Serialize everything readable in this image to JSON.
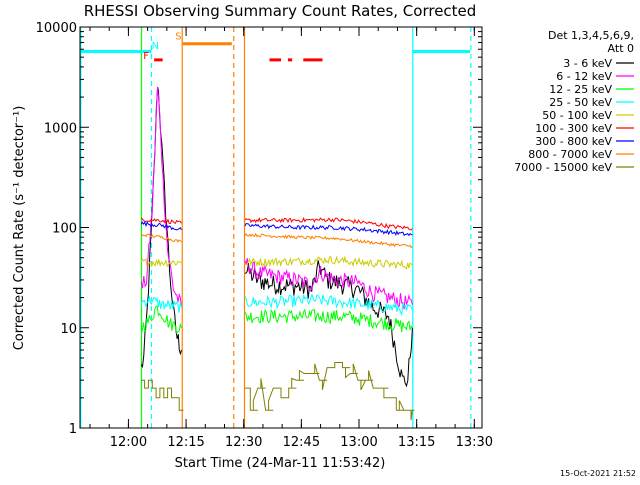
{
  "chart_data": {
    "type": "line",
    "title": "RHESSI Observing Summary Count Rates, Corrected",
    "xlabel": "Start Time (24-Mar-11 11:53:42)",
    "ylabel": "Corrected Count Rate (s⁻¹ detector⁻¹)",
    "yscale": "log",
    "ylim": [
      1,
      10000
    ],
    "xlim_minutes_from_start": [
      -6.3,
      98.3
    ],
    "x_ticks": [
      {
        "label": "12:00",
        "minutes": 6.3
      },
      {
        "label": "12:15",
        "minutes": 21.3
      },
      {
        "label": "12:30",
        "minutes": 36.3
      },
      {
        "label": "12:45",
        "minutes": 51.3
      },
      {
        "label": "13:00",
        "minutes": 66.3
      },
      {
        "label": "13:15",
        "minutes": 81.3
      },
      {
        "label": "13:30",
        "minutes": 96.3
      }
    ],
    "y_ticks": [
      {
        "label": "1",
        "value": 1
      },
      {
        "label": "10",
        "value": 10
      },
      {
        "label": "100",
        "value": 100
      },
      {
        "label": "1000",
        "value": 1000
      },
      {
        "label": "10000",
        "value": 10000
      }
    ],
    "legend": {
      "header": [
        "Det 1,3,4,5,6,9,",
        "Att 0"
      ],
      "placement": "right-outside"
    },
    "series": [
      {
        "name": "3 - 6 keV",
        "color": "#000000",
        "noise": 0.1,
        "segments": [
          {
            "points": [
              [
                9.6,
                4
              ],
              [
                10.3,
                5
              ],
              [
                11.2,
                15
              ],
              [
                12.2,
                80
              ],
              [
                13.2,
                600
              ],
              [
                13.9,
                2900
              ],
              [
                14.3,
                1800
              ],
              [
                15.0,
                600
              ],
              [
                16.0,
                150
              ],
              [
                17.0,
                40
              ],
              [
                18.0,
                14
              ],
              [
                19.0,
                8
              ],
              [
                20.1,
                6
              ]
            ]
          },
          {
            "points": [
              [
                36.6,
                38
              ],
              [
                40.0,
                30
              ],
              [
                44.0,
                27
              ],
              [
                50.0,
                26
              ],
              [
                54.0,
                24
              ],
              [
                56.0,
                41
              ],
              [
                58.0,
                30
              ],
              [
                62.0,
                27
              ],
              [
                66.0,
                24
              ],
              [
                70.0,
                16
              ],
              [
                74.0,
                13
              ],
              [
                77.6,
                3
              ],
              [
                79.0,
                3
              ],
              [
                80.2,
                10
              ]
            ]
          }
        ]
      },
      {
        "name": "6 - 12 keV",
        "color": "#ff00ff",
        "noise": 0.08,
        "segments": [
          {
            "points": [
              [
                9.6,
                25
              ],
              [
                11.0,
                30
              ],
              [
                12.5,
                150
              ],
              [
                13.5,
                1200
              ],
              [
                13.9,
                2500
              ],
              [
                14.5,
                1200
              ],
              [
                15.3,
                300
              ],
              [
                16.5,
                60
              ],
              [
                18.0,
                25
              ],
              [
                20.1,
                16
              ]
            ]
          },
          {
            "points": [
              [
                36.6,
                45
              ],
              [
                40.0,
                35
              ],
              [
                44.0,
                33
              ],
              [
                50.0,
                30
              ],
              [
                54.0,
                27
              ],
              [
                56.0,
                36
              ],
              [
                60.0,
                30
              ],
              [
                66.0,
                28
              ],
              [
                70.0,
                22
              ],
              [
                74.0,
                20
              ],
              [
                80.2,
                17
              ]
            ]
          }
        ]
      },
      {
        "name": "12 - 25 keV",
        "color": "#00ff00",
        "noise": 0.07,
        "segments": [
          {
            "points": [
              [
                9.6,
                10
              ],
              [
                12.0,
                12
              ],
              [
                13.5,
                16
              ],
              [
                15.0,
                14
              ],
              [
                17.0,
                11
              ],
              [
                20.1,
                10
              ]
            ]
          },
          {
            "points": [
              [
                36.6,
                13
              ],
              [
                45.0,
                13
              ],
              [
                55.0,
                13
              ],
              [
                62.0,
                13
              ],
              [
                68.0,
                12
              ],
              [
                74.0,
                11
              ],
              [
                80.2,
                10
              ]
            ]
          }
        ]
      },
      {
        "name": "25 - 50 keV",
        "color": "#00ffff",
        "noise": 0.06,
        "segments": [
          {
            "points": [
              [
                9.6,
                18
              ],
              [
                12.0,
                19
              ],
              [
                15.0,
                17
              ],
              [
                20.1,
                16
              ]
            ]
          },
          {
            "points": [
              [
                36.6,
                18
              ],
              [
                45.0,
                18
              ],
              [
                55.0,
                19
              ],
              [
                62.0,
                18
              ],
              [
                68.0,
                17
              ],
              [
                74.0,
                16
              ],
              [
                80.2,
                15
              ]
            ]
          }
        ]
      },
      {
        "name": "50 - 100 keV",
        "color": "#cccc00",
        "noise": 0.04,
        "segments": [
          {
            "points": [
              [
                9.6,
                45
              ],
              [
                20.1,
                45
              ]
            ]
          },
          {
            "points": [
              [
                36.6,
                45
              ],
              [
                50.0,
                46
              ],
              [
                58.0,
                48
              ],
              [
                66.0,
                45
              ],
              [
                74.0,
                43
              ],
              [
                80.2,
                42
              ]
            ]
          }
        ]
      },
      {
        "name": "100 - 300 keV",
        "color": "#ff0000",
        "noise": 0.02,
        "segments": [
          {
            "points": [
              [
                9.6,
                120
              ],
              [
                15.0,
                118
              ],
              [
                20.1,
                110
              ]
            ]
          },
          {
            "points": [
              [
                36.6,
                118
              ],
              [
                50.0,
                118
              ],
              [
                60.0,
                120
              ],
              [
                68.0,
                112
              ],
              [
                74.0,
                103
              ],
              [
                80.2,
                98
              ]
            ]
          }
        ]
      },
      {
        "name": "300 - 800 keV",
        "color": "#0000ff",
        "noise": 0.02,
        "segments": [
          {
            "points": [
              [
                9.6,
                110
              ],
              [
                15.0,
                105
              ],
              [
                20.1,
                95
              ]
            ]
          },
          {
            "points": [
              [
                36.6,
                105
              ],
              [
                50.0,
                100
              ],
              [
                60.0,
                100
              ],
              [
                68.0,
                95
              ],
              [
                74.0,
                90
              ],
              [
                80.2,
                84
              ]
            ]
          }
        ]
      },
      {
        "name": "800 - 7000 keV",
        "color": "#ff8000",
        "noise": 0.015,
        "segments": [
          {
            "points": [
              [
                9.6,
                85
              ],
              [
                15.0,
                80
              ],
              [
                20.1,
                72
              ]
            ]
          },
          {
            "points": [
              [
                36.6,
                85
              ],
              [
                50.0,
                80
              ],
              [
                60.0,
                78
              ],
              [
                68.0,
                72
              ],
              [
                74.0,
                68
              ],
              [
                80.2,
                65
              ]
            ]
          }
        ]
      },
      {
        "name": "7000 - 15000 keV",
        "color": "#808000",
        "noise": 0.0,
        "segments": [
          {
            "levels": [
              [
                9.6,
                3
              ],
              [
                10.5,
                2.5
              ],
              [
                11.5,
                3
              ],
              [
                12.5,
                2.5
              ],
              [
                13.5,
                2
              ],
              [
                14.5,
                2.5
              ],
              [
                15.5,
                2
              ],
              [
                16.5,
                2.5
              ],
              [
                17.5,
                2
              ],
              [
                18.5,
                2
              ],
              [
                19.5,
                1.5
              ],
              [
                20.1,
                1.5
              ]
            ]
          },
          {
            "levels": [
              [
                36.6,
                2.5
              ],
              [
                38.0,
                1.5
              ],
              [
                40.0,
                2.5
              ],
              [
                42.0,
                1.5
              ],
              [
                44.0,
                2.5
              ],
              [
                46.0,
                2
              ],
              [
                48.0,
                2.5
              ],
              [
                50.0,
                3
              ],
              [
                52.0,
                3.5
              ],
              [
                54.0,
                3.5
              ],
              [
                56.0,
                3
              ],
              [
                58.0,
                4
              ],
              [
                60.0,
                4.5
              ],
              [
                62.0,
                4
              ],
              [
                64.0,
                3.5
              ],
              [
                66.0,
                3
              ],
              [
                68.0,
                3
              ],
              [
                70.0,
                2.5
              ],
              [
                72.0,
                2.5
              ],
              [
                74.0,
                2
              ],
              [
                76.0,
                1.5
              ],
              [
                78.0,
                1.5
              ],
              [
                80.2,
                1.5
              ]
            ]
          }
        ]
      }
    ],
    "flags": [
      {
        "name": "night",
        "label": "",
        "color": "#00ffff",
        "value": 5700,
        "ranges": [
          [
            -6.3,
            12.3
          ],
          [
            80.3,
            95.2
          ]
        ],
        "dashed": false
      },
      {
        "name": "flare",
        "label": "F",
        "color": "#ff0000",
        "value": 4700,
        "ranges": [
          [
            13.0,
            15.2
          ],
          [
            43.0,
            46.0
          ],
          [
            47.8,
            48.9
          ],
          [
            51.8,
            56.8
          ]
        ],
        "dashed": true
      },
      {
        "name": "saa",
        "label": "S",
        "color": "#ff8000",
        "value": 6800,
        "ranges": [
          [
            20.4,
            33.2
          ]
        ],
        "dashed": false
      }
    ],
    "flag_labels": [
      {
        "text": "F",
        "color": "#ff0000",
        "minutes": 10.9,
        "value": 4800
      },
      {
        "text": "N",
        "color": "#00ffff",
        "minutes": 13.3,
        "value": 6000
      },
      {
        "text": "S",
        "color": "#ff8000",
        "minutes": 19.3,
        "value": 7500
      }
    ],
    "vertical_markers": [
      {
        "minutes": -6.1,
        "color": "#00ffff",
        "dashed": false
      },
      {
        "minutes": 12.3,
        "color": "#00ffff",
        "dashed": true
      },
      {
        "minutes": 20.3,
        "color": "#ff8000",
        "dashed": false
      },
      {
        "minutes": 33.7,
        "color": "#ff8000",
        "dashed": true
      },
      {
        "minutes": 36.5,
        "color": "#ff8000",
        "dashed": false
      },
      {
        "minutes": 9.7,
        "color": "#00ff00",
        "dashed": false
      },
      {
        "minutes": 80.3,
        "color": "#00ffff",
        "dashed": false
      },
      {
        "minutes": 95.4,
        "color": "#00ffff",
        "dashed": true
      }
    ],
    "timestamp": "15-Oct-2021 21:52"
  }
}
